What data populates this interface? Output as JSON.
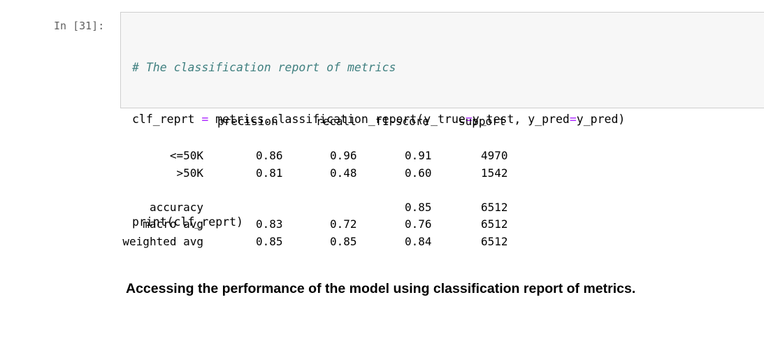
{
  "cell": {
    "prompt": "In [31]:",
    "code": {
      "comment": "# The classification report of metrics",
      "line2_var": "clf_reprt",
      "line2_eq": "=",
      "line2_call": "metrics.classification_report(y_true",
      "line2_eq2": "=",
      "line2_mid": "y_test, y_pred",
      "line2_eq3": "=",
      "line2_end": "y_pred)",
      "line4": "print(clf_reprt)"
    }
  },
  "report": {
    "headers": [
      "precision",
      "recall",
      "f1-score",
      "support"
    ],
    "rows": [
      {
        "label": "<=50K",
        "precision": "0.86",
        "recall": "0.96",
        "f1": "0.91",
        "support": "4970"
      },
      {
        "label": ">50K",
        "precision": "0.81",
        "recall": "0.48",
        "f1": "0.60",
        "support": "1542"
      },
      {
        "label": "accuracy",
        "precision": "",
        "recall": "",
        "f1": "0.85",
        "support": "6512"
      },
      {
        "label": "macro avg",
        "precision": "0.83",
        "recall": "0.72",
        "f1": "0.76",
        "support": "6512"
      },
      {
        "label": "weighted avg",
        "precision": "0.85",
        "recall": "0.85",
        "f1": "0.84",
        "support": "6512"
      }
    ]
  },
  "caption": "Accessing the performance of the model using classification report of metrics."
}
